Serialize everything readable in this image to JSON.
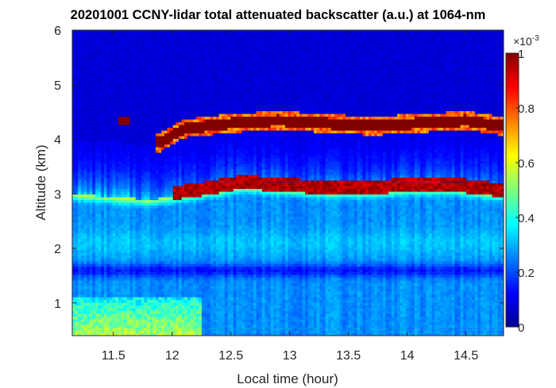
{
  "chart_data": {
    "type": "heatmap",
    "title": "20201001 CCNY-lidar total attenuated backscatter (a.u.) at 1064-nm",
    "xlabel": "Local time (hour)",
    "ylabel": "Altitude (km)",
    "xlim": [
      11.15,
      14.82
    ],
    "ylim": [
      0.4,
      6
    ],
    "xticks": [
      "11.5",
      "12",
      "12.5",
      "13",
      "13.5",
      "14",
      "14.5"
    ],
    "xtick_values": [
      11.5,
      12,
      12.5,
      13,
      13.5,
      14,
      14.5
    ],
    "yticks": [
      "1",
      "2",
      "3",
      "4",
      "5",
      "6"
    ],
    "ytick_values": [
      1,
      2,
      3,
      4,
      5,
      6
    ],
    "colorbar": {
      "colormap": "jet",
      "range": [
        0,
        1
      ],
      "ticks": [
        "0",
        "0.2",
        "0.4",
        "0.6",
        "0.8",
        "1"
      ],
      "tick_values": [
        0,
        0.2,
        0.4,
        0.6,
        0.8,
        1
      ],
      "multiplier": "×10",
      "multiplier_exponent": "-3"
    },
    "features": {
      "boundary_layer_top_km": [
        [
          11.15,
          3.0
        ],
        [
          11.5,
          2.95
        ],
        [
          11.8,
          2.9
        ],
        [
          12.2,
          3.0
        ],
        [
          12.6,
          3.15
        ],
        [
          12.9,
          3.1
        ],
        [
          13.3,
          3.05
        ],
        [
          13.7,
          3.05
        ],
        [
          14.0,
          3.1
        ],
        [
          14.4,
          3.1
        ],
        [
          14.8,
          3.0
        ]
      ],
      "cloud_layer_km": [
        [
          11.9,
          3.95
        ],
        [
          12.1,
          4.2
        ],
        [
          12.5,
          4.3
        ],
        [
          12.9,
          4.35
        ],
        [
          13.3,
          4.3
        ],
        [
          13.7,
          4.25
        ],
        [
          14.1,
          4.3
        ],
        [
          14.5,
          4.35
        ],
        [
          14.8,
          4.25
        ]
      ],
      "residual_layer_km": 1.6,
      "near_surface_enhanced": {
        "time_range": [
          11.15,
          12.25
        ],
        "altitude_range_km": [
          0.4,
          1.1
        ],
        "value": 0.55
      }
    }
  }
}
